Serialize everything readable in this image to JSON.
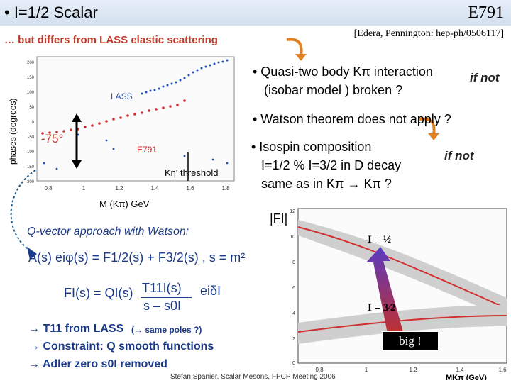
{
  "header": {
    "title": "• I=1/2 Scalar",
    "experiment": "E791",
    "reference": "[Edera, Pennington: hep-ph/0506117]",
    "subtitle": "… but differs from LASS elastic scattering"
  },
  "bullets": {
    "b1_line1": "• Quasi-two body Kπ interaction",
    "b1_line2": "(isobar model ) broken ?",
    "if_not_1": "if not",
    "b2": "• Watson theorem does not apply ?",
    "b3_line1": "• Isospin composition",
    "b3_line2": "I=1/2 % I=3/2 in D decay",
    "b3_line3": "same as in Kπ → Kπ ?",
    "if_not_2": "if not"
  },
  "left_plot": {
    "y_label": "phases (degrees)",
    "x_label": "M (Kπ) GeV",
    "lass_label": "LASS",
    "e791_label": "E791",
    "phase_diff_label": "-75°",
    "threshold_label": "Kη' threshold",
    "y_ticks": [
      "200",
      "150",
      "100",
      "50",
      "0",
      "-50",
      "-100",
      "-150",
      "-200"
    ],
    "x_ticks": [
      "0.8",
      "1",
      "1.2",
      "1.4",
      "1.6",
      "1.8"
    ],
    "colors": {
      "lass": "#1f4fbf",
      "e791": "#d03030"
    }
  },
  "right_plot": {
    "y_title": "|FI|",
    "i_half_label": "I = ½",
    "i_3half_label": "I = 3⁄2",
    "x_label": "MKπ (GeV)",
    "y_ticks": [
      "12",
      "10",
      "8",
      "6",
      "4",
      "2",
      "0"
    ],
    "x_ticks": [
      "0.8",
      "1",
      "1.2",
      "1.4",
      "1.6"
    ],
    "big_label": "big !"
  },
  "qvector": {
    "heading": "Q-vector approach with Watson:",
    "eq1": "A(s) eiφ(s) = F1/2(s) + F3/2(s)   , s = m²",
    "eq2_lhs": "FI(s) = QI(s)",
    "eq2_num": "T11I(s)",
    "eq2_den": "s – s0I",
    "eq2_phase": "eiδI",
    "line1": "→ T11 from LASS",
    "line1_note": "(→ same poles ?)",
    "line2": "→ Constraint: Q smooth functions",
    "line3": "→ Adler zero s0I removed"
  },
  "footer": "Stefan Spanier,  Scalar Mesons, FPCP Meeting 2006"
}
